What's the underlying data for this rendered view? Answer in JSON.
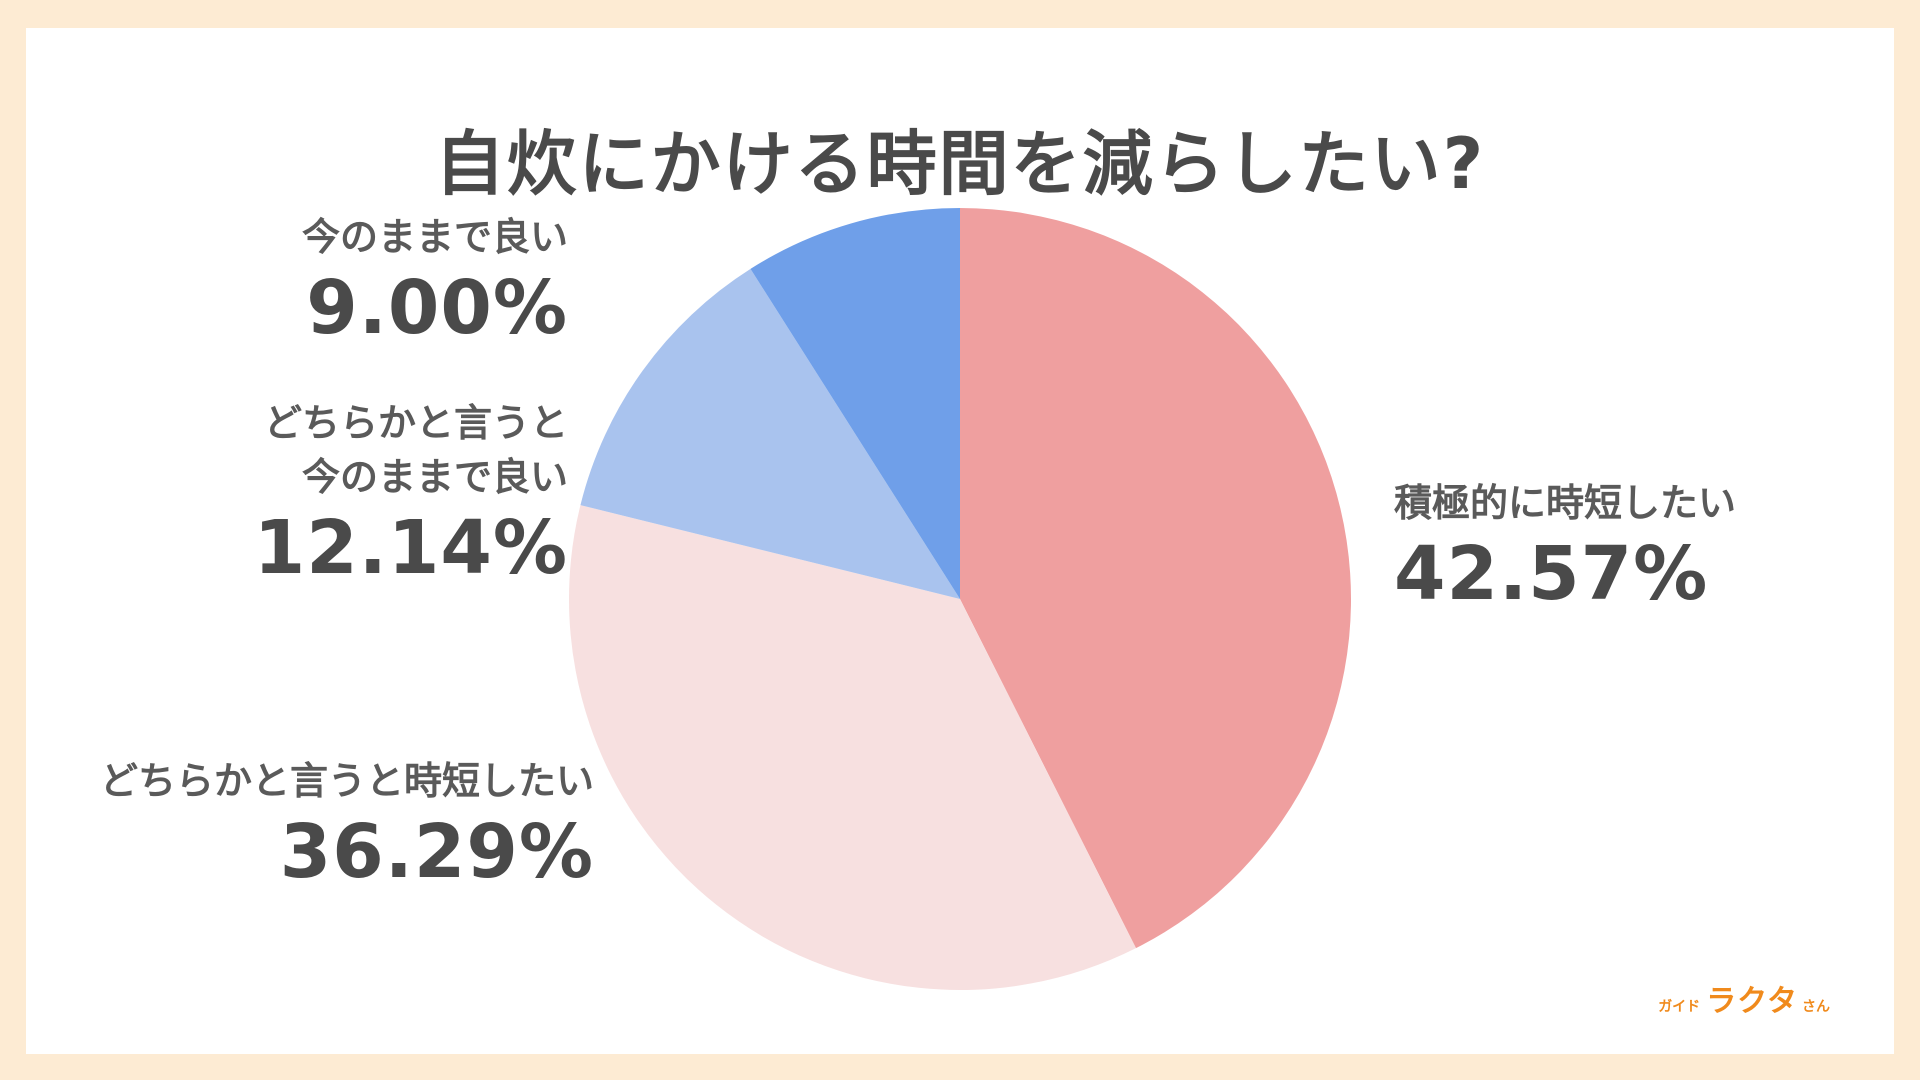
{
  "chart_data": {
    "type": "pie",
    "title": "自炊にかける時間を減らしたい?",
    "start_angle_deg": 0,
    "direction": "clockwise",
    "slices": [
      {
        "label": "積極的に時短したい",
        "label_lines": [
          "積極的に時短したい"
        ],
        "value": 42.57,
        "value_text": "42.57%",
        "color": "#ef9f9f"
      },
      {
        "label": "どちらかと言うと時短したい",
        "label_lines": [
          "どちらかと言うと時短したい"
        ],
        "value": 36.29,
        "value_text": "36.29%",
        "color": "#f7e0e0"
      },
      {
        "label": "どちらかと言うと今のままで良い",
        "label_lines": [
          "どちらかと言うと",
          "今のままで良い"
        ],
        "value": 12.14,
        "value_text": "12.14%",
        "color": "#a9c3ee"
      },
      {
        "label": "今のままで良い",
        "label_lines": [
          "今のままで良い"
        ],
        "value": 9.0,
        "value_text": "9.00%",
        "color": "#6f9fe9"
      }
    ]
  },
  "colors": {
    "background": "#fdebd3",
    "card": "#ffffff",
    "text": "#4a4a4a",
    "brand": "#f08a1c"
  },
  "brand": {
    "prefix": "ガイド",
    "name": "ラクタ",
    "suffix": "さん"
  }
}
